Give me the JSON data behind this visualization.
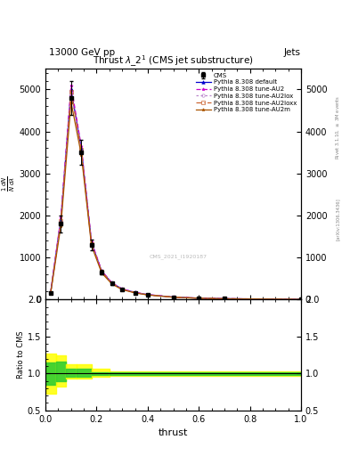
{
  "header_left": "13000 GeV pp",
  "header_right": "Jets",
  "title": "Thrust $\\lambda\\_2^1$ (CMS jet substructure)",
  "xlabel": "thrust",
  "ylabel_main": "$\\frac{1}{N}\\frac{dN}{d\\lambda}$",
  "ylabel_ratio": "Ratio to CMS",
  "right_label_top": "Rivet 3.1.10, $\\geq$ 3M events",
  "right_label_bottom": "[arXiv:1306.3436]",
  "watermark": "CMS_2021_I1920187",
  "cms_label": "CMS",
  "xlim": [
    0.0,
    1.0
  ],
  "ylim_main": [
    0,
    5500
  ],
  "ylim_ratio": [
    0.5,
    2.0
  ],
  "thrust_x": [
    0.02,
    0.06,
    0.1,
    0.14,
    0.18,
    0.22,
    0.26,
    0.3,
    0.35,
    0.4,
    0.5,
    0.6,
    0.7,
    1.0
  ],
  "cms_y": [
    150,
    1800,
    4800,
    3500,
    1300,
    650,
    380,
    240,
    160,
    110,
    55,
    30,
    18,
    2
  ],
  "cms_yerr": [
    20,
    200,
    400,
    300,
    120,
    60,
    35,
    22,
    15,
    10,
    5,
    3,
    2,
    0.5
  ],
  "default_y": [
    160,
    1900,
    5000,
    3600,
    1350,
    670,
    390,
    248,
    166,
    114,
    57,
    31,
    19,
    2.2
  ],
  "au2_y": [
    170,
    1950,
    5100,
    3650,
    1380,
    685,
    398,
    254,
    170,
    117,
    59,
    32,
    20,
    2.3
  ],
  "au2lox_y": [
    155,
    1850,
    4900,
    3530,
    1320,
    655,
    382,
    243,
    163,
    111,
    56,
    30,
    18.5,
    2.1
  ],
  "au2loxx_y": [
    158,
    1870,
    4950,
    3560,
    1330,
    660,
    385,
    245,
    164,
    112,
    56.5,
    30.5,
    18.7,
    2.15
  ],
  "au2m_y": [
    145,
    1750,
    4700,
    3450,
    1280,
    630,
    368,
    234,
    157,
    107,
    54,
    29,
    17.5,
    2.0
  ],
  "color_default": "#0000CC",
  "color_au2": "#CC00CC",
  "color_au2lox": "#BB88CC",
  "color_au2loxx": "#CC6633",
  "color_au2m": "#AA5500",
  "color_cms": "#000000",
  "ratio_bins_x": [
    0.0,
    0.04,
    0.08,
    0.12,
    0.18,
    0.25,
    1.0
  ],
  "ratio_yellow_lo": [
    0.73,
    0.82,
    0.93,
    0.93,
    0.95,
    0.97,
    0.97
  ],
  "ratio_yellow_hi": [
    1.27,
    1.25,
    1.12,
    1.12,
    1.06,
    1.03,
    1.03
  ],
  "ratio_green_lo": [
    0.85,
    0.9,
    0.96,
    0.96,
    0.98,
    0.985,
    0.985
  ],
  "ratio_green_hi": [
    1.15,
    1.16,
    1.06,
    1.06,
    1.02,
    1.015,
    1.015
  ],
  "yticks_main": [
    0,
    1000,
    2000,
    3000,
    4000,
    5000
  ],
  "yticks_ratio": [
    0.5,
    1.0,
    1.5,
    2.0
  ],
  "bg_color": "#FFFFFF"
}
